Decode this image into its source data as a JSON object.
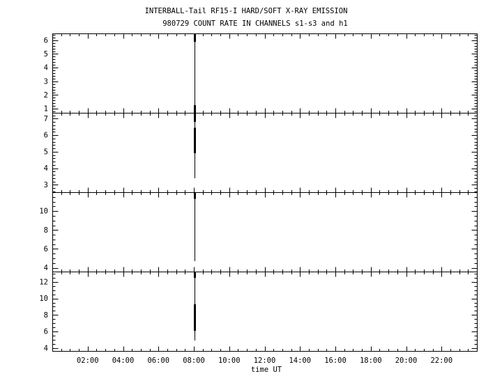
{
  "page": {
    "background": "#ffffff",
    "ink": "#000000"
  },
  "chart_data": {
    "type": "line",
    "title": "INTERBALL-Tail RF15-I HARD/SOFT X-RAY EMISSION",
    "subtitle": "980729  COUNT RATE IN CHANNELS s1-s3 and h1",
    "xlabel": "time UT",
    "grid": false,
    "legend": false,
    "x_axis": {
      "range_hours": [
        0,
        24
      ],
      "major_tick_hours": [
        2,
        4,
        6,
        8,
        10,
        12,
        14,
        16,
        18,
        20,
        22
      ],
      "major_tick_labels": [
        "02:00",
        "04:00",
        "06:00",
        "08:00",
        "10:00",
        "12:00",
        "14:00",
        "16:00",
        "18:00",
        "20:00",
        "22:00"
      ],
      "minor_step_hours": 0.5
    },
    "panels": [
      {
        "ylim": [
          0.7,
          6.5
        ],
        "y_major_ticks": [
          1,
          2,
          3,
          4,
          5,
          6
        ],
        "y_minor_step": 0.2,
        "spike": {
          "x_hours": 8.02,
          "extent": [
            0.7,
            6.5
          ],
          "thick_segments": [
            [
              5.9,
              6.5
            ],
            [
              0.7,
              1.25
            ]
          ]
        }
      },
      {
        "ylim": [
          2.55,
          7.35
        ],
        "y_major_ticks": [
          3,
          4,
          5,
          6,
          7
        ],
        "y_minor_step": 0.2,
        "spike": {
          "x_hours": 8.02,
          "extent": [
            3.4,
            7.35
          ],
          "thick_segments": [
            [
              4.9,
              6.45
            ],
            [
              6.8,
              7.35
            ]
          ]
        }
      },
      {
        "ylim": [
          3.6,
          12.0
        ],
        "y_major_ticks": [
          4,
          6,
          8,
          10
        ],
        "y_minor_step": 0.5,
        "spike": {
          "x_hours": 8.02,
          "extent": [
            4.7,
            12.0
          ],
          "thick_segments": [
            [
              11.3,
              12.0
            ]
          ]
        }
      },
      {
        "ylim": [
          3.65,
          13.25
        ],
        "y_major_ticks": [
          4,
          6,
          8,
          10,
          12
        ],
        "y_minor_step": 0.5,
        "spike": {
          "x_hours": 8.02,
          "extent": [
            4.9,
            13.25
          ],
          "thick_segments": [
            [
              6.1,
              9.3
            ],
            [
              12.5,
              13.25
            ]
          ]
        }
      }
    ]
  }
}
